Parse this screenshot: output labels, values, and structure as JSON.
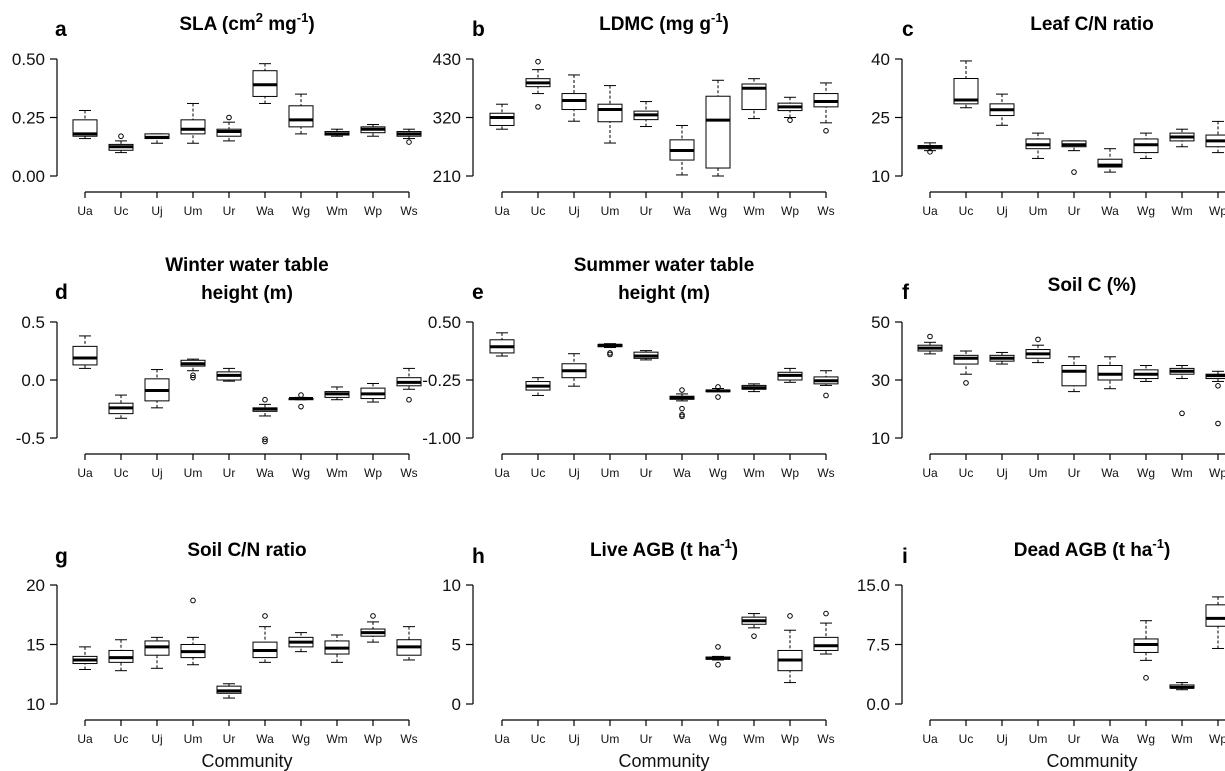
{
  "figure": {
    "xlabel": "Community"
  },
  "chart_data": [
    {
      "type": "box",
      "letter": "a",
      "title": "SLA (cm",
      "title_sup": "2",
      "title_mid": "  mg",
      "title_sup2": "-1",
      "title_end": ")",
      "ylim": [
        0,
        0.5
      ],
      "yticks": [
        "0.00",
        "0.25",
        "0.50"
      ],
      "ytick_values": [
        0,
        0.25,
        0.5
      ],
      "categories": [
        "Ua",
        "Uc",
        "Uj",
        "Um",
        "Ur",
        "Wa",
        "Wg",
        "Wm",
        "Wp",
        "Ws"
      ],
      "boxes": [
        {
          "lw": 0.16,
          "q1": 0.17,
          "med": 0.18,
          "q3": 0.24,
          "uw": 0.28,
          "out": []
        },
        {
          "lw": 0.1,
          "q1": 0.11,
          "med": 0.125,
          "q3": 0.135,
          "uw": 0.15,
          "out": [
            0.17
          ]
        },
        {
          "lw": 0.14,
          "q1": 0.16,
          "med": 0.165,
          "q3": 0.18,
          "uw": 0.18,
          "out": []
        },
        {
          "lw": 0.14,
          "q1": 0.18,
          "med": 0.2,
          "q3": 0.24,
          "uw": 0.31,
          "out": []
        },
        {
          "lw": 0.15,
          "q1": 0.17,
          "med": 0.19,
          "q3": 0.2,
          "uw": 0.23,
          "out": [
            0.25
          ]
        },
        {
          "lw": 0.31,
          "q1": 0.34,
          "med": 0.39,
          "q3": 0.45,
          "uw": 0.48,
          "out": []
        },
        {
          "lw": 0.18,
          "q1": 0.21,
          "med": 0.24,
          "q3": 0.3,
          "uw": 0.35,
          "out": []
        },
        {
          "lw": 0.17,
          "q1": 0.175,
          "med": 0.18,
          "q3": 0.19,
          "uw": 0.2,
          "out": []
        },
        {
          "lw": 0.17,
          "q1": 0.185,
          "med": 0.2,
          "q3": 0.21,
          "uw": 0.22,
          "out": []
        },
        {
          "lw": 0.16,
          "q1": 0.17,
          "med": 0.18,
          "q3": 0.19,
          "uw": 0.2,
          "out": [
            0.145
          ]
        }
      ]
    },
    {
      "type": "box",
      "letter": "b",
      "title": "LDMC (mg g",
      "title_sup": "-1",
      "title_mid": "",
      "title_sup2": "",
      "title_end": ")",
      "ylim": [
        210,
        430
      ],
      "yticks": [
        "210",
        "320",
        "430"
      ],
      "ytick_values": [
        210,
        320,
        430
      ],
      "categories": [
        "Ua",
        "Uc",
        "Uj",
        "Um",
        "Ur",
        "Wa",
        "Wg",
        "Wm",
        "Wp",
        "Ws"
      ],
      "boxes": [
        {
          "lw": 298,
          "q1": 305,
          "med": 320,
          "q3": 328,
          "uw": 345,
          "out": []
        },
        {
          "lw": 365,
          "q1": 378,
          "med": 385,
          "q3": 393,
          "uw": 410,
          "out": [
            425,
            340
          ]
        },
        {
          "lw": 313,
          "q1": 335,
          "med": 352,
          "q3": 365,
          "uw": 400,
          "out": []
        },
        {
          "lw": 272,
          "q1": 312,
          "med": 335,
          "q3": 345,
          "uw": 380,
          "out": []
        },
        {
          "lw": 303,
          "q1": 316,
          "med": 325,
          "q3": 332,
          "uw": 350,
          "out": []
        },
        {
          "lw": 212,
          "q1": 240,
          "med": 258,
          "q3": 278,
          "uw": 305,
          "out": []
        },
        {
          "lw": 210,
          "q1": 225,
          "med": 315,
          "q3": 360,
          "uw": 390,
          "out": []
        },
        {
          "lw": 318,
          "q1": 335,
          "med": 375,
          "q3": 383,
          "uw": 393,
          "out": []
        },
        {
          "lw": 320,
          "q1": 333,
          "med": 340,
          "q3": 347,
          "uw": 358,
          "out": [
            315
          ]
        },
        {
          "lw": 310,
          "q1": 340,
          "med": 350,
          "q3": 365,
          "uw": 385,
          "out": [
            295
          ]
        }
      ]
    },
    {
      "type": "box",
      "letter": "c",
      "title": "Leaf C/N ratio",
      "title_sup": "",
      "title_mid": "",
      "title_sup2": "",
      "title_end": "",
      "ylim": [
        10,
        40
      ],
      "yticks": [
        "10",
        "25",
        "40"
      ],
      "ytick_values": [
        10,
        25,
        40
      ],
      "categories": [
        "Ua",
        "Uc",
        "Uj",
        "Um",
        "Ur",
        "Wa",
        "Wg",
        "Wm",
        "Wp",
        "Ws"
      ],
      "boxes": [
        {
          "lw": 16.5,
          "q1": 17,
          "med": 17.5,
          "q3": 17.8,
          "uw": 18.5,
          "out": [
            16.2
          ]
        },
        {
          "lw": 27.5,
          "q1": 28.5,
          "med": 29.5,
          "q3": 35,
          "uw": 39.5,
          "out": []
        },
        {
          "lw": 23,
          "q1": 25.5,
          "med": 27,
          "q3": 28.5,
          "uw": 31,
          "out": []
        },
        {
          "lw": 14.5,
          "q1": 17,
          "med": 18,
          "q3": 19.5,
          "uw": 21,
          "out": []
        },
        {
          "lw": 16.5,
          "q1": 17.5,
          "med": 18,
          "q3": 19,
          "uw": 19,
          "out": [
            11
          ]
        },
        {
          "lw": 11,
          "q1": 12.3,
          "med": 12.8,
          "q3": 14.3,
          "uw": 17,
          "out": []
        },
        {
          "lw": 14.5,
          "q1": 16,
          "med": 18,
          "q3": 19.5,
          "uw": 21,
          "out": []
        },
        {
          "lw": 17.5,
          "q1": 19,
          "med": 20,
          "q3": 21,
          "uw": 22,
          "out": []
        },
        {
          "lw": 16,
          "q1": 17.5,
          "med": 19,
          "q3": 20.5,
          "uw": 24,
          "out": []
        },
        {
          "lw": 24.5,
          "q1": 27,
          "med": 28.3,
          "q3": 29.5,
          "uw": 31,
          "out": [
            34,
            32.5
          ]
        }
      ]
    },
    {
      "type": "box",
      "letter": "d",
      "title": "Winter water table",
      "title2": "height (m)",
      "title_sup": "",
      "title_mid": "",
      "title_sup2": "",
      "title_end": "",
      "ylim": [
        -0.5,
        0.5
      ],
      "yticks": [
        "-0.5",
        "0.0",
        "0.5"
      ],
      "ytick_values": [
        -0.5,
        0,
        0.5
      ],
      "categories": [
        "Ua",
        "Uc",
        "Uj",
        "Um",
        "Ur",
        "Wa",
        "Wg",
        "Wm",
        "Wp",
        "Ws"
      ],
      "boxes": [
        {
          "lw": 0.1,
          "q1": 0.13,
          "med": 0.19,
          "q3": 0.29,
          "uw": 0.38,
          "out": []
        },
        {
          "lw": -0.33,
          "q1": -0.29,
          "med": -0.24,
          "q3": -0.2,
          "uw": -0.13,
          "out": []
        },
        {
          "lw": -0.24,
          "q1": -0.18,
          "med": -0.09,
          "q3": 0.01,
          "uw": 0.09,
          "out": []
        },
        {
          "lw": 0.08,
          "q1": 0.12,
          "med": 0.14,
          "q3": 0.17,
          "uw": 0.18,
          "out": [
            0.02,
            0.04
          ]
        },
        {
          "lw": -0.01,
          "q1": 0.0,
          "med": 0.04,
          "q3": 0.07,
          "uw": 0.1,
          "out": []
        },
        {
          "lw": -0.31,
          "q1": -0.27,
          "med": -0.25,
          "q3": -0.24,
          "uw": -0.21,
          "out": [
            -0.17,
            -0.51,
            -0.53
          ]
        },
        {
          "lw": -0.17,
          "q1": -0.17,
          "med": -0.16,
          "q3": -0.16,
          "uw": -0.15,
          "out": [
            -0.13,
            -0.23
          ]
        },
        {
          "lw": -0.17,
          "q1": -0.15,
          "med": -0.12,
          "q3": -0.1,
          "uw": -0.06,
          "out": []
        },
        {
          "lw": -0.19,
          "q1": -0.16,
          "med": -0.12,
          "q3": -0.07,
          "uw": -0.03,
          "out": []
        },
        {
          "lw": -0.08,
          "q1": -0.05,
          "med": -0.02,
          "q3": 0.02,
          "uw": 0.1,
          "out": [
            -0.17
          ]
        }
      ]
    },
    {
      "type": "box",
      "letter": "e",
      "title": "Summer water table",
      "title2": "height (m)",
      "title_sup": "",
      "title_mid": "",
      "title_sup2": "",
      "title_end": "",
      "ylim": [
        -1.0,
        0.5
      ],
      "yticks": [
        "-1.00",
        "-0.25",
        "0.50"
      ],
      "ytick_values": [
        -1.0,
        -0.25,
        0.5
      ],
      "categories": [
        "Ua",
        "Uc",
        "Uj",
        "Um",
        "Ur",
        "Wa",
        "Wg",
        "Wm",
        "Wp",
        "Ws"
      ],
      "boxes": [
        {
          "lw": 0.06,
          "q1": 0.1,
          "med": 0.18,
          "q3": 0.27,
          "uw": 0.36,
          "out": []
        },
        {
          "lw": -0.45,
          "q1": -0.38,
          "med": -0.33,
          "q3": -0.27,
          "uw": -0.22,
          "out": []
        },
        {
          "lw": -0.33,
          "q1": -0.22,
          "med": -0.13,
          "q3": -0.04,
          "uw": 0.09,
          "out": []
        },
        {
          "lw": 0.17,
          "q1": 0.18,
          "med": 0.2,
          "q3": 0.21,
          "uw": 0.22,
          "out": [
            0.1,
            0.08
          ]
        },
        {
          "lw": 0.01,
          "q1": 0.03,
          "med": 0.06,
          "q3": 0.11,
          "uw": 0.13,
          "out": []
        },
        {
          "lw": -0.52,
          "q1": -0.5,
          "med": -0.48,
          "q3": -0.46,
          "uw": -0.43,
          "out": [
            -0.38,
            -0.62,
            -0.7,
            -0.72
          ]
        },
        {
          "lw": -0.4,
          "q1": -0.4,
          "med": -0.39,
          "q3": -0.38,
          "uw": -0.36,
          "out": [
            -0.34,
            -0.47
          ]
        },
        {
          "lw": -0.4,
          "q1": -0.37,
          "med": -0.35,
          "q3": -0.32,
          "uw": -0.3,
          "out": []
        },
        {
          "lw": -0.28,
          "q1": -0.25,
          "med": -0.19,
          "q3": -0.15,
          "uw": -0.1,
          "out": []
        },
        {
          "lw": -0.32,
          "q1": -0.3,
          "med": -0.26,
          "q3": -0.21,
          "uw": -0.13,
          "out": [
            -0.45
          ]
        }
      ]
    },
    {
      "type": "box",
      "letter": "f",
      "title": "Soil C (%)",
      "title_sup": "",
      "title_mid": "",
      "title_sup2": "",
      "title_end": "",
      "ylim": [
        10,
        50
      ],
      "yticks": [
        "10",
        "30",
        "50"
      ],
      "ytick_values": [
        10,
        30,
        50
      ],
      "categories": [
        "Ua",
        "Uc",
        "Uj",
        "Um",
        "Ur",
        "Wa",
        "Wg",
        "Wm",
        "Wp",
        "Ws"
      ],
      "boxes": [
        {
          "lw": 39,
          "q1": 40,
          "med": 41,
          "q3": 42,
          "uw": 43,
          "out": [
            45
          ]
        },
        {
          "lw": 32,
          "q1": 35.5,
          "med": 37.5,
          "q3": 38.5,
          "uw": 40,
          "out": [
            29
          ]
        },
        {
          "lw": 35.5,
          "q1": 36.5,
          "med": 37.5,
          "q3": 38.5,
          "uw": 39.5,
          "out": []
        },
        {
          "lw": 36,
          "q1": 37.5,
          "med": 39,
          "q3": 40.5,
          "uw": 42,
          "out": [
            44
          ]
        },
        {
          "lw": 26,
          "q1": 28,
          "med": 33,
          "q3": 35,
          "uw": 38,
          "out": []
        },
        {
          "lw": 27,
          "q1": 30,
          "med": 32,
          "q3": 35,
          "uw": 38,
          "out": []
        },
        {
          "lw": 29.5,
          "q1": 30.5,
          "med": 32,
          "q3": 33.5,
          "uw": 35,
          "out": []
        },
        {
          "lw": 30.5,
          "q1": 32,
          "med": 33,
          "q3": 34,
          "uw": 35,
          "out": [
            18.5
          ]
        },
        {
          "lw": 29.5,
          "q1": 30.5,
          "med": 31.5,
          "q3": 32,
          "uw": 33,
          "out": [
            28,
            15
          ]
        },
        {
          "lw": 36.5,
          "q1": 37,
          "med": 37.5,
          "q3": 37.8,
          "uw": 38.5,
          "out": [
            40,
            35
          ]
        }
      ]
    },
    {
      "type": "box",
      "letter": "g",
      "title": "Soil C/N ratio",
      "title_sup": "",
      "title_mid": "",
      "title_sup2": "",
      "title_end": "",
      "ylim": [
        10,
        20
      ],
      "yticks": [
        "10",
        "15",
        "20"
      ],
      "ytick_values": [
        10,
        15,
        20
      ],
      "categories": [
        "Ua",
        "Uc",
        "Uj",
        "Um",
        "Ur",
        "Wa",
        "Wg",
        "Wm",
        "Wp",
        "Ws"
      ],
      "boxes": [
        {
          "lw": 12.9,
          "q1": 13.4,
          "med": 13.7,
          "q3": 14.0,
          "uw": 14.8,
          "out": []
        },
        {
          "lw": 12.8,
          "q1": 13.5,
          "med": 13.9,
          "q3": 14.5,
          "uw": 15.4,
          "out": []
        },
        {
          "lw": 13.0,
          "q1": 14.1,
          "med": 14.8,
          "q3": 15.3,
          "uw": 15.6,
          "out": []
        },
        {
          "lw": 13.3,
          "q1": 13.9,
          "med": 14.4,
          "q3": 15.0,
          "uw": 15.6,
          "out": [
            18.7
          ]
        },
        {
          "lw": 10.5,
          "q1": 10.9,
          "med": 11.1,
          "q3": 11.5,
          "uw": 11.7,
          "out": []
        },
        {
          "lw": 13.5,
          "q1": 13.9,
          "med": 14.5,
          "q3": 15.2,
          "uw": 16.5,
          "out": [
            17.4
          ]
        },
        {
          "lw": 14.4,
          "q1": 14.8,
          "med": 15.2,
          "q3": 15.6,
          "uw": 16.0,
          "out": []
        },
        {
          "lw": 13.5,
          "q1": 14.2,
          "med": 14.7,
          "q3": 15.3,
          "uw": 15.8,
          "out": []
        },
        {
          "lw": 15.2,
          "q1": 15.7,
          "med": 16.0,
          "q3": 16.3,
          "uw": 16.9,
          "out": [
            17.4
          ]
        },
        {
          "lw": 13.7,
          "q1": 14.1,
          "med": 14.8,
          "q3": 15.4,
          "uw": 16.5,
          "out": []
        }
      ]
    },
    {
      "type": "box",
      "letter": "h",
      "title": "Live AGB (t ha",
      "title_sup": "-1",
      "title_mid": "",
      "title_sup2": "",
      "title_end": ")",
      "ylim": [
        0,
        10
      ],
      "yticks": [
        "0",
        "5",
        "10"
      ],
      "ytick_values": [
        0,
        5,
        10
      ],
      "categories": [
        "Ua",
        "Uc",
        "Uj",
        "Um",
        "Ur",
        "Wa",
        "Wg",
        "Wm",
        "Wp",
        "Ws"
      ],
      "boxes": [
        null,
        null,
        null,
        null,
        null,
        null,
        {
          "lw": 3.7,
          "q1": 3.75,
          "med": 3.85,
          "q3": 3.95,
          "uw": 4.0,
          "out": [
            4.8,
            3.3
          ]
        },
        {
          "lw": 6.4,
          "q1": 6.7,
          "med": 7.0,
          "q3": 7.3,
          "uw": 7.6,
          "out": [
            5.7
          ]
        },
        {
          "lw": 1.8,
          "q1": 2.8,
          "med": 3.7,
          "q3": 4.5,
          "uw": 6.2,
          "out": [
            7.4
          ]
        },
        {
          "lw": 4.2,
          "q1": 4.5,
          "med": 4.9,
          "q3": 5.6,
          "uw": 6.8,
          "out": [
            7.6
          ]
        }
      ]
    },
    {
      "type": "box",
      "letter": "i",
      "title": "Dead AGB (t ha",
      "title_sup": "-1",
      "title_mid": "",
      "title_sup2": "",
      "title_end": ")",
      "ylim": [
        0,
        15
      ],
      "yticks": [
        "0.0",
        "7.5",
        "15.0"
      ],
      "ytick_values": [
        0,
        7.5,
        15
      ],
      "categories": [
        "Ua",
        "Uc",
        "Uj",
        "Um",
        "Ur",
        "Wa",
        "Wg",
        "Wm",
        "Wp",
        "Ws"
      ],
      "boxes": [
        null,
        null,
        null,
        null,
        null,
        null,
        {
          "lw": 5.5,
          "q1": 6.5,
          "med": 7.5,
          "q3": 8.2,
          "uw": 10.5,
          "out": [
            3.3
          ]
        },
        {
          "lw": 1.8,
          "q1": 2.0,
          "med": 2.1,
          "q3": 2.4,
          "uw": 2.7,
          "out": []
        },
        {
          "lw": 7.0,
          "q1": 9.8,
          "med": 10.8,
          "q3": 12.5,
          "uw": 13.5,
          "out": []
        },
        {
          "lw": 0.0,
          "q1": 0.0,
          "med": 0.05,
          "q3": 0.1,
          "uw": 0.1,
          "out": []
        }
      ]
    }
  ]
}
